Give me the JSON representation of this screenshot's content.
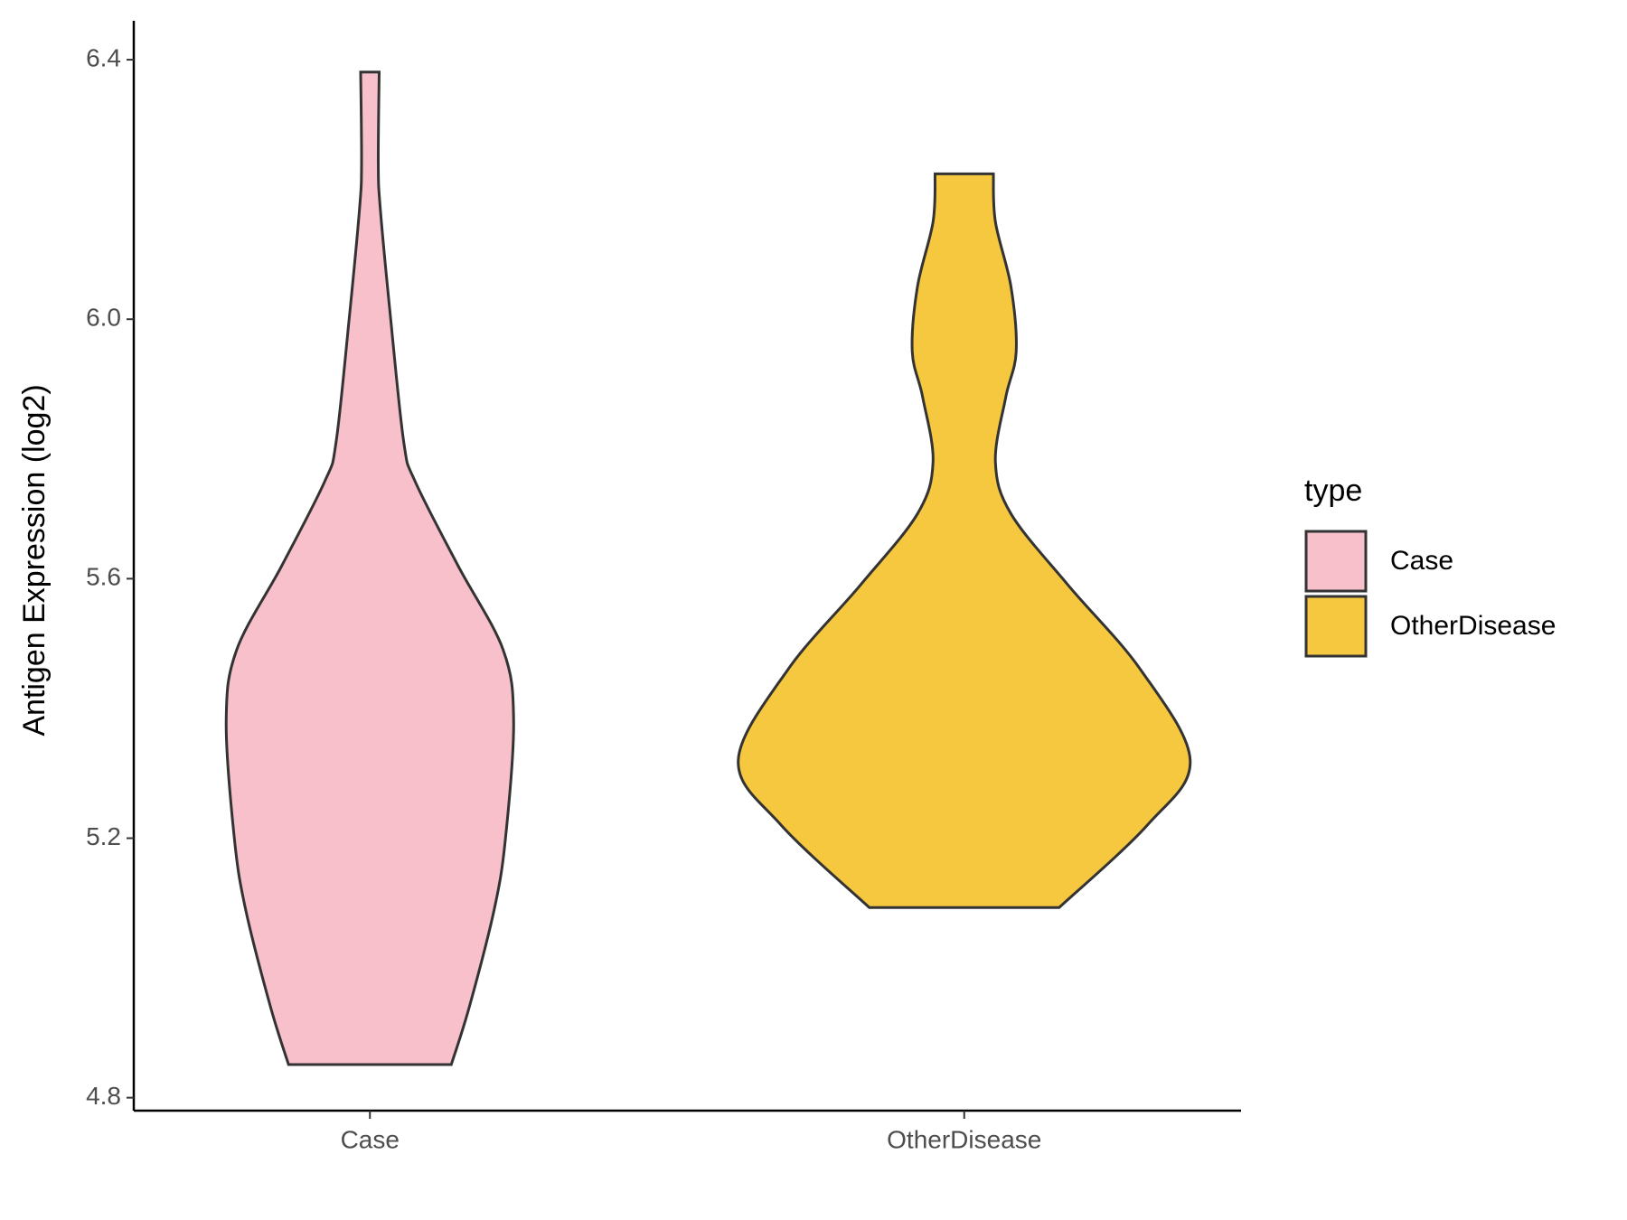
{
  "chart_data": {
    "type": "violin",
    "y_label": "Antigen Expression (log2)",
    "categories": [
      "Case",
      "OtherDisease"
    ],
    "legend_title": "type",
    "legend_position": "right",
    "ylim": [
      4.78,
      6.46
    ],
    "yticks": [
      {
        "value": 4.8,
        "label": "4.8"
      },
      {
        "value": 5.2,
        "label": "5.2"
      },
      {
        "value": 5.6,
        "label": "5.6"
      },
      {
        "value": 6.0,
        "label": "6.0"
      },
      {
        "value": 6.4,
        "label": "6.4"
      }
    ],
    "series": [
      {
        "name": "Case",
        "color": "#f7c0cb",
        "y": [
          6.381,
          6.24,
          6.17,
          6.0,
          5.81,
          5.75,
          5.62,
          5.49,
          5.38,
          5.2,
          5.09,
          4.94,
          4.851
        ],
        "density": [
          0.041,
          0.037,
          0.046,
          0.092,
          0.15,
          0.2,
          0.39,
          0.59,
          0.636,
          0.6,
          0.55,
          0.44,
          0.36
        ]
      },
      {
        "name": "OtherDisease",
        "color": "#f5c83f",
        "y": [
          6.224,
          6.15,
          6.05,
          5.95,
          5.88,
          5.78,
          5.7,
          5.59,
          5.46,
          5.32,
          5.22,
          5.093
        ],
        "density": [
          0.129,
          0.138,
          0.207,
          0.23,
          0.184,
          0.138,
          0.207,
          0.46,
          0.78,
          1.0,
          0.81,
          0.42
        ]
      }
    ]
  }
}
